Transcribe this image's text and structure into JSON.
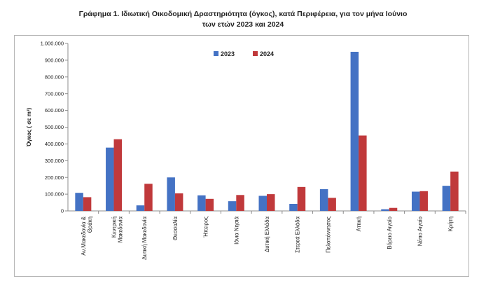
{
  "chart_data": {
    "type": "bar",
    "title_line1": "Γράφημα 1.  Ιδιωτική Οικοδομική Δραστηριότητα (όγκος), κατά Περιφέρεια, για τον μήνα Ιούνιο",
    "title_line2": "των ετών 2023 και 2024",
    "ylabel": "Όγκος ( σε  m³)",
    "ylim": [
      0,
      1000000
    ],
    "yticks": [
      "0",
      "100.000",
      "200.000",
      "300.000",
      "400.000",
      "500.000",
      "600.000",
      "700.000",
      "800.000",
      "900.000",
      "1.000.000"
    ],
    "categories": [
      [
        "Αν.Μακεδονία &",
        "Θράκη"
      ],
      [
        "Κεντρική",
        "Μακεδονία"
      ],
      [
        "Δυτική Μακεδονία"
      ],
      [
        "Θεσσαλία"
      ],
      [
        "Ήπειρος"
      ],
      [
        "Ιόνια Νησιά"
      ],
      [
        "Δυτική Ελλάδα"
      ],
      [
        "Στερεά Ελλάδα"
      ],
      [
        "Πελοπόννησος"
      ],
      [
        "Αττική"
      ],
      [
        "Βόρειο Αιγαίο"
      ],
      [
        "Νότιο Αιγαίο"
      ],
      [
        "Κρήτη"
      ]
    ],
    "series": [
      {
        "name": "2023",
        "color": "#4472c4",
        "values": [
          108000,
          378000,
          33000,
          200000,
          93000,
          58000,
          90000,
          42000,
          130000,
          950000,
          10000,
          115000,
          150000
        ]
      },
      {
        "name": "2024",
        "color": "#c0393b",
        "values": [
          82000,
          428000,
          162000,
          105000,
          72000,
          95000,
          100000,
          143000,
          78000,
          450000,
          18000,
          118000,
          235000
        ]
      }
    ],
    "legend_position": "top-center",
    "grid": false
  }
}
